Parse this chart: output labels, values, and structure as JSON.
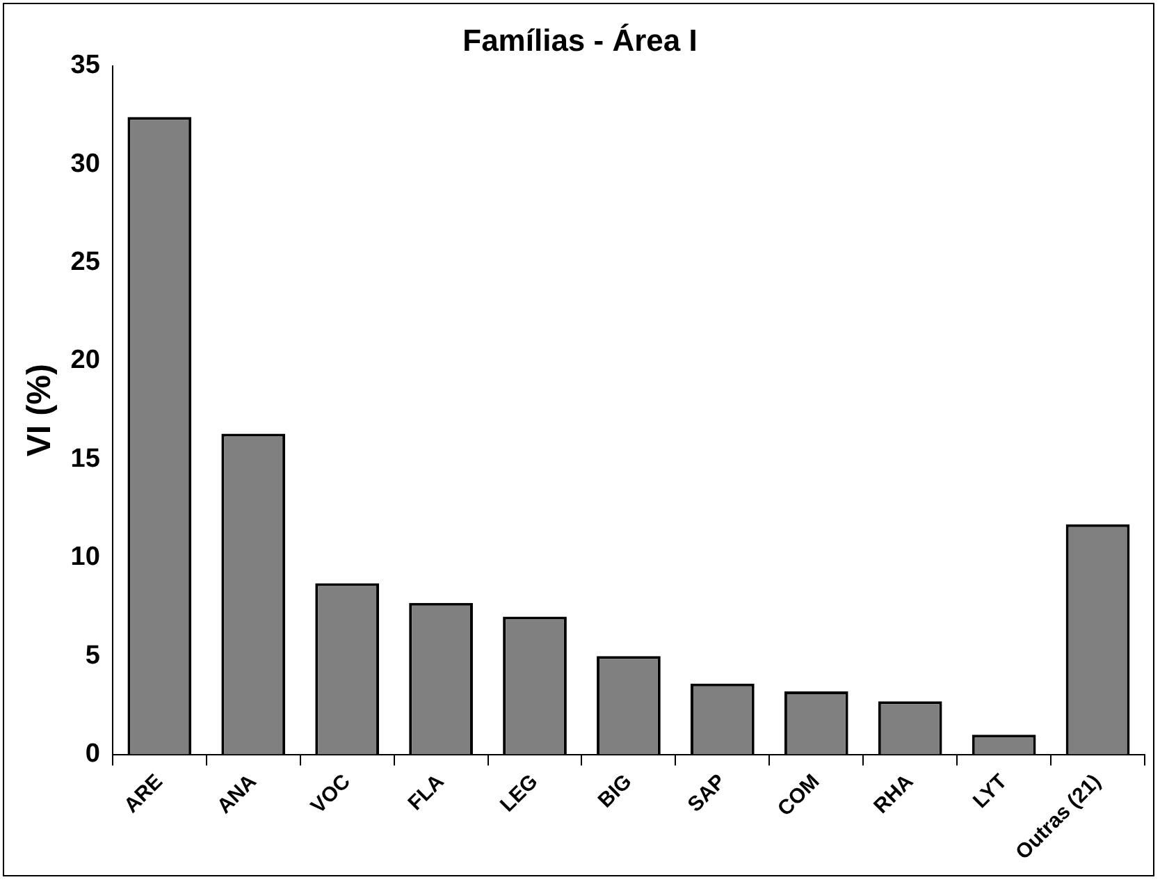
{
  "chart_data": {
    "type": "bar",
    "title": "Famílias - Área I",
    "ylabel": "VI (%)",
    "categories": [
      "ARE",
      "ANA",
      "VOC",
      "FLA",
      "LEG",
      "BIG",
      "SAP",
      "COM",
      "RHA",
      "LYT",
      "Outras (21)"
    ],
    "values": [
      32.4,
      16.3,
      8.7,
      7.7,
      7.0,
      5.0,
      3.6,
      3.2,
      2.7,
      1.0,
      11.7
    ],
    "color": "#808080",
    "ylim": [
      0,
      35
    ],
    "yticks": [
      0,
      5,
      10,
      15,
      20,
      25,
      30,
      35
    ],
    "grid": false,
    "legend": false
  }
}
